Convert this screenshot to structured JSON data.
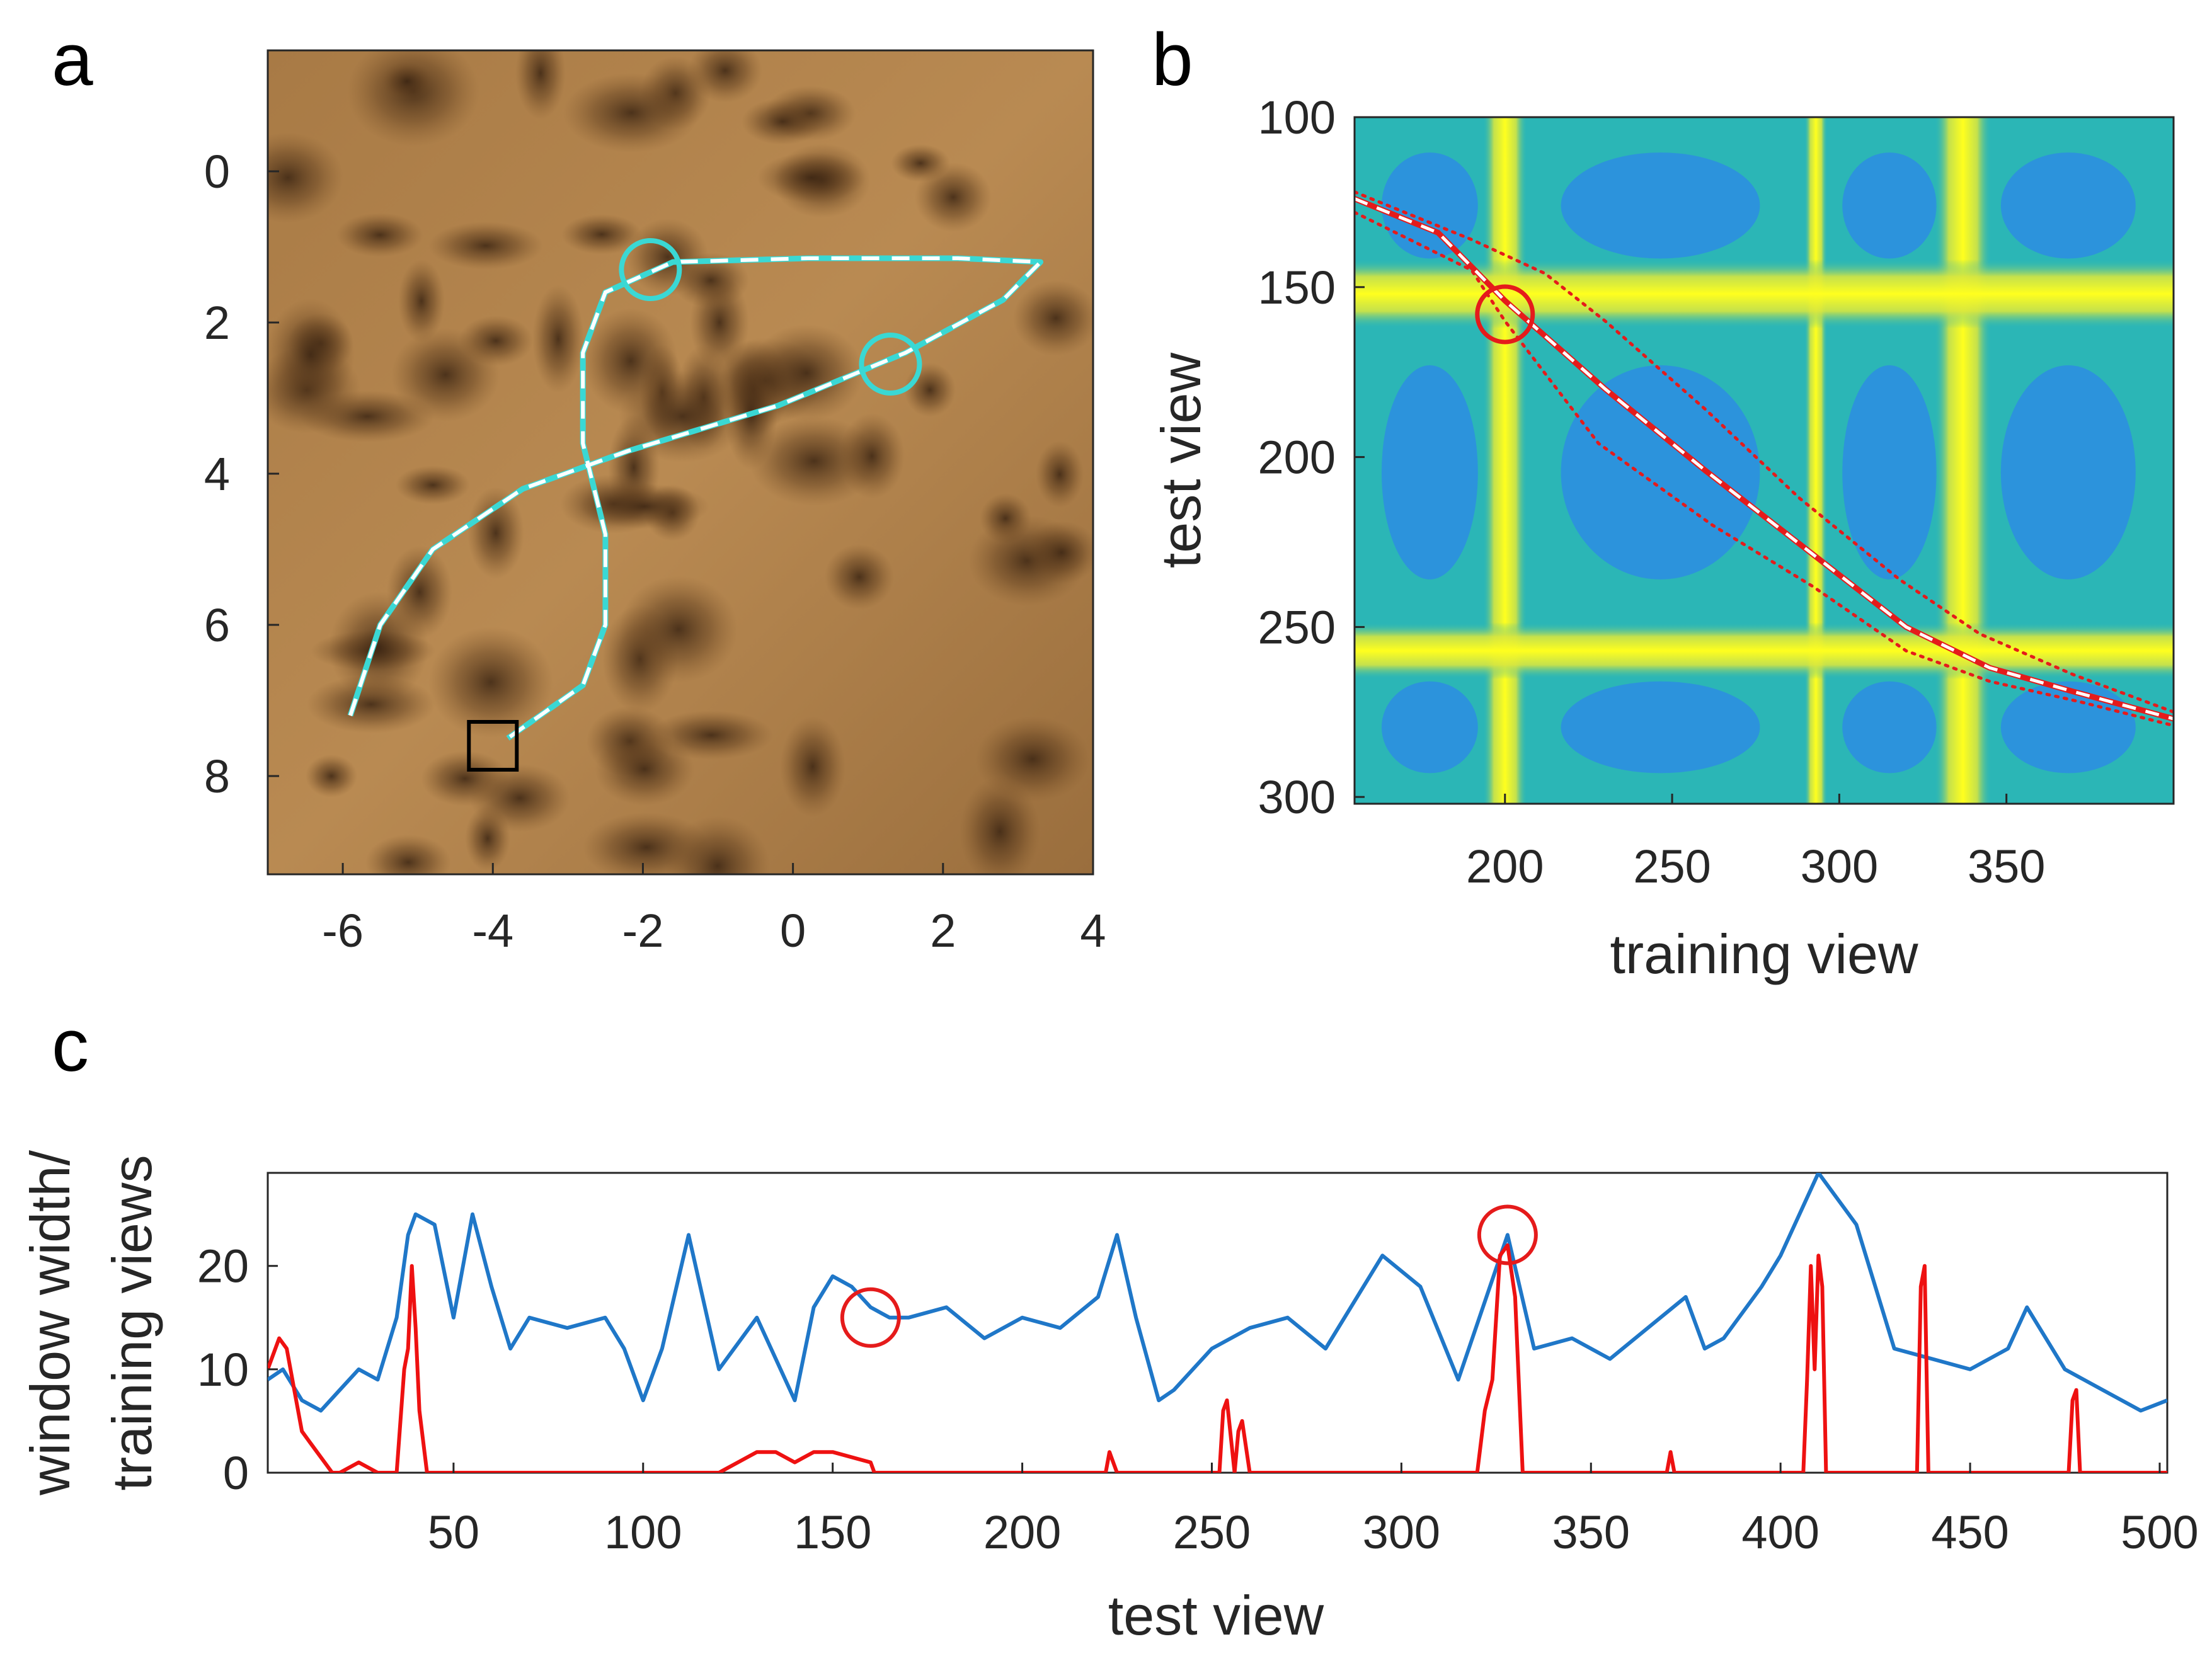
{
  "panels": {
    "a": {
      "letter": "a"
    },
    "b": {
      "letter": "b"
    },
    "c": {
      "letter": "c"
    }
  },
  "chart_data": [
    {
      "panel": "a",
      "type": "scatter",
      "description_kind": "map-trajectory",
      "xlim": [
        -7,
        4
      ],
      "ylim": [
        9.3,
        -1.6
      ],
      "xticks": [
        -6,
        -4,
        -2,
        0,
        2,
        4
      ],
      "xtick_labels": [
        "-6",
        "-4",
        "-2",
        "0",
        "2",
        "4"
      ],
      "yticks": [
        0,
        2,
        4,
        6,
        8
      ],
      "ytick_labels": [
        "0",
        "2",
        "4",
        "6",
        "8"
      ],
      "xlabel": "",
      "ylabel": "",
      "series": [
        {
          "style": "solid",
          "color": "#3ad8d4",
          "points": [
            [
              -5.9,
              7.2
            ],
            [
              -5.5,
              6.0
            ],
            [
              -4.8,
              5.0
            ],
            [
              -3.6,
              4.2
            ],
            [
              -2.2,
              3.7
            ],
            [
              -0.2,
              3.1
            ],
            [
              1.5,
              2.4
            ],
            [
              2.8,
              1.7
            ],
            [
              3.3,
              1.2
            ],
            [
              2.2,
              1.15
            ],
            [
              0.2,
              1.15
            ],
            [
              -1.6,
              1.2
            ],
            [
              -2.5,
              1.6
            ],
            [
              -2.8,
              2.4
            ],
            [
              -2.8,
              3.6
            ],
            [
              -2.5,
              4.8
            ],
            [
              -2.5,
              6.0
            ],
            [
              -2.8,
              6.8
            ],
            [
              -3.8,
              7.5
            ]
          ]
        }
      ],
      "markers": [
        {
          "shape": "circle",
          "color": "#3ad8d4",
          "x": -1.9,
          "y": 1.3
        },
        {
          "shape": "circle",
          "color": "#3ad8d4",
          "x": 1.3,
          "y": 2.55
        },
        {
          "shape": "square",
          "color": "#000000",
          "x": -4.0,
          "y": 7.6
        }
      ]
    },
    {
      "panel": "b",
      "type": "heatmap",
      "xlim": [
        155,
        400
      ],
      "ylim": [
        100,
        302
      ],
      "xticks": [
        200,
        250,
        300,
        350
      ],
      "xtick_labels": [
        "200",
        "250",
        "300",
        "350"
      ],
      "yticks": [
        100,
        150,
        200,
        250,
        300
      ],
      "ytick_labels": [
        "100",
        "150",
        "200",
        "250",
        "300"
      ],
      "xlabel": "training view",
      "ylabel": "test view",
      "colors": {
        "low": "#2d87e8",
        "mid": "#2bb6b6",
        "high": "#f5f520",
        "estimate": "#e51b1b",
        "window": "#e51b1b",
        "reference": "#ffffff"
      },
      "bright_columns": [
        200,
        293,
        337
      ],
      "bright_rows": [
        152,
        257
      ],
      "estimate_path": [
        [
          155,
          124
        ],
        [
          180,
          134
        ],
        [
          200,
          154
        ],
        [
          230,
          180
        ],
        [
          260,
          204
        ],
        [
          290,
          227
        ],
        [
          320,
          250
        ],
        [
          345,
          262
        ],
        [
          370,
          269
        ],
        [
          400,
          277
        ]
      ],
      "window_upper": [
        [
          155,
          122
        ],
        [
          190,
          136
        ],
        [
          212,
          146
        ],
        [
          230,
          160
        ],
        [
          260,
          186
        ],
        [
          288,
          212
        ],
        [
          318,
          236
        ],
        [
          342,
          252
        ],
        [
          370,
          264
        ],
        [
          400,
          275
        ]
      ],
      "window_lower": [
        [
          155,
          128
        ],
        [
          190,
          145
        ],
        [
          200,
          160
        ],
        [
          228,
          196
        ],
        [
          262,
          220
        ],
        [
          292,
          238
        ],
        [
          320,
          257
        ],
        [
          345,
          266
        ],
        [
          372,
          272
        ],
        [
          400,
          279
        ]
      ],
      "marker": {
        "shape": "circle",
        "color": "#e51b1b",
        "x": 200,
        "y": 158
      }
    },
    {
      "panel": "c",
      "type": "line",
      "xlim": [
        1,
        502
      ],
      "ylim": [
        0,
        29
      ],
      "xticks": [
        50,
        100,
        150,
        200,
        250,
        300,
        350,
        400,
        450,
        500
      ],
      "xtick_labels": [
        "50",
        "100",
        "150",
        "200",
        "250",
        "300",
        "350",
        "400",
        "450",
        "500"
      ],
      "yticks": [
        0,
        10,
        20
      ],
      "ytick_labels": [
        "0",
        "10",
        "20"
      ],
      "xlabel": "test view",
      "ylabel_line1": "window width/",
      "ylabel_line2": "training views",
      "series": [
        {
          "color": "#1f77c8",
          "x": [
            1,
            5,
            10,
            15,
            20,
            25,
            30,
            35,
            38,
            40,
            45,
            50,
            55,
            60,
            65,
            70,
            80,
            90,
            95,
            100,
            105,
            112,
            120,
            130,
            135,
            140,
            145,
            150,
            155,
            160,
            165,
            170,
            180,
            190,
            200,
            210,
            220,
            225,
            230,
            236,
            240,
            250,
            260,
            270,
            280,
            295,
            305,
            315,
            328,
            335,
            345,
            355,
            365,
            375,
            380,
            385,
            395,
            400,
            410,
            420,
            430,
            440,
            450,
            460,
            465,
            475,
            485,
            495,
            502
          ],
          "values": [
            9,
            10,
            7,
            6,
            8,
            10,
            9,
            15,
            23,
            25,
            24,
            15,
            25,
            18,
            12,
            15,
            14,
            15,
            12,
            7,
            12,
            23,
            10,
            15,
            11,
            7,
            16,
            19,
            18,
            16,
            15,
            15,
            16,
            13,
            15,
            14,
            17,
            23,
            15,
            7,
            8,
            12,
            14,
            15,
            12,
            21,
            18,
            9,
            23,
            12,
            13,
            11,
            14,
            17,
            12,
            13,
            18,
            21,
            29,
            24,
            12,
            11,
            10,
            12,
            16,
            10,
            8,
            6,
            7
          ]
        },
        {
          "color": "#ee1111",
          "x": [
            1,
            4,
            6,
            8,
            10,
            12,
            14,
            16,
            18,
            20,
            25,
            30,
            35,
            37,
            38,
            39,
            40,
            41,
            43,
            50,
            60,
            80,
            100,
            120,
            125,
            130,
            135,
            140,
            145,
            150,
            160,
            161,
            170,
            200,
            222,
            223,
            224,
            225,
            240,
            252,
            253,
            254,
            256,
            257,
            258,
            260,
            280,
            300,
            320,
            322,
            324,
            326,
            328,
            330,
            332,
            340,
            360,
            370,
            371,
            372,
            380,
            400,
            406,
            407,
            408,
            409,
            410,
            411,
            412,
            420,
            436,
            437,
            438,
            439,
            440,
            470,
            476,
            477,
            478,
            479,
            480,
            502
          ],
          "values": [
            10,
            13,
            12,
            8,
            4,
            3,
            2,
            1,
            0,
            0,
            1,
            0,
            0,
            10,
            12,
            20,
            14,
            6,
            0,
            0,
            0,
            0,
            0,
            0,
            1,
            2,
            2,
            1,
            2,
            2,
            1,
            0,
            0,
            0,
            0,
            2,
            1,
            0,
            0,
            0,
            6,
            7,
            0,
            4,
            5,
            0,
            0,
            0,
            0,
            6,
            9,
            21,
            22,
            17,
            0,
            0,
            0,
            0,
            2,
            0,
            0,
            0,
            0,
            9,
            20,
            10,
            21,
            18,
            0,
            0,
            0,
            18,
            20,
            0,
            0,
            0,
            0,
            7,
            8,
            0,
            0,
            0
          ]
        }
      ],
      "markers": [
        {
          "shape": "circle",
          "color": "#e51b1b",
          "x": 160,
          "y": 15
        },
        {
          "shape": "circle",
          "color": "#e51b1b",
          "x": 328,
          "y": 23
        }
      ]
    }
  ]
}
